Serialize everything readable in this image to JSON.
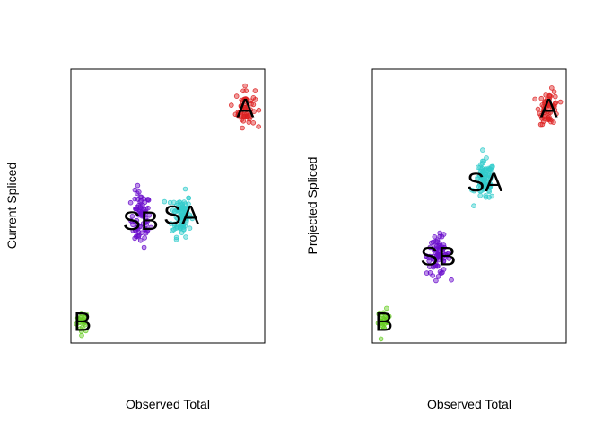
{
  "chart_data": [
    {
      "type": "scatter",
      "xlabel": "Observed Total",
      "ylabel": "Current Spliced",
      "xlim": [
        0,
        1
      ],
      "ylim": [
        0,
        1
      ],
      "axes_ticks": false,
      "clusters": [
        {
          "label": "B",
          "color": "#66CC22",
          "center": [
            0.06,
            0.08
          ],
          "spread": [
            0.015,
            0.02
          ],
          "n": 25
        },
        {
          "label": "SB",
          "color": "#6A0DCC",
          "center": [
            0.36,
            0.45
          ],
          "spread": [
            0.025,
            0.05
          ],
          "n": 80
        },
        {
          "label": "SA",
          "color": "#33CCCC",
          "center": [
            0.57,
            0.47
          ],
          "spread": [
            0.025,
            0.04
          ],
          "n": 90
        },
        {
          "label": "A",
          "color": "#DD2222",
          "center": [
            0.9,
            0.86
          ],
          "spread": [
            0.025,
            0.035
          ],
          "n": 60
        }
      ]
    },
    {
      "type": "scatter",
      "xlabel": "Observed Total",
      "ylabel": "Projected Spliced",
      "xlim": [
        0,
        1
      ],
      "ylim": [
        0,
        1
      ],
      "axes_ticks": false,
      "clusters": [
        {
          "label": "B",
          "color": "#66CC22",
          "center": [
            0.06,
            0.08
          ],
          "spread": [
            0.015,
            0.02
          ],
          "n": 25
        },
        {
          "label": "SB",
          "color": "#6A0DCC",
          "center": [
            0.34,
            0.32
          ],
          "spread": [
            0.03,
            0.035
          ],
          "n": 80
        },
        {
          "label": "SA",
          "color": "#33CCCC",
          "center": [
            0.58,
            0.59
          ],
          "spread": [
            0.025,
            0.035
          ],
          "n": 90
        },
        {
          "label": "A",
          "color": "#DD2222",
          "center": [
            0.91,
            0.86
          ],
          "spread": [
            0.025,
            0.03
          ],
          "n": 60
        }
      ]
    }
  ]
}
